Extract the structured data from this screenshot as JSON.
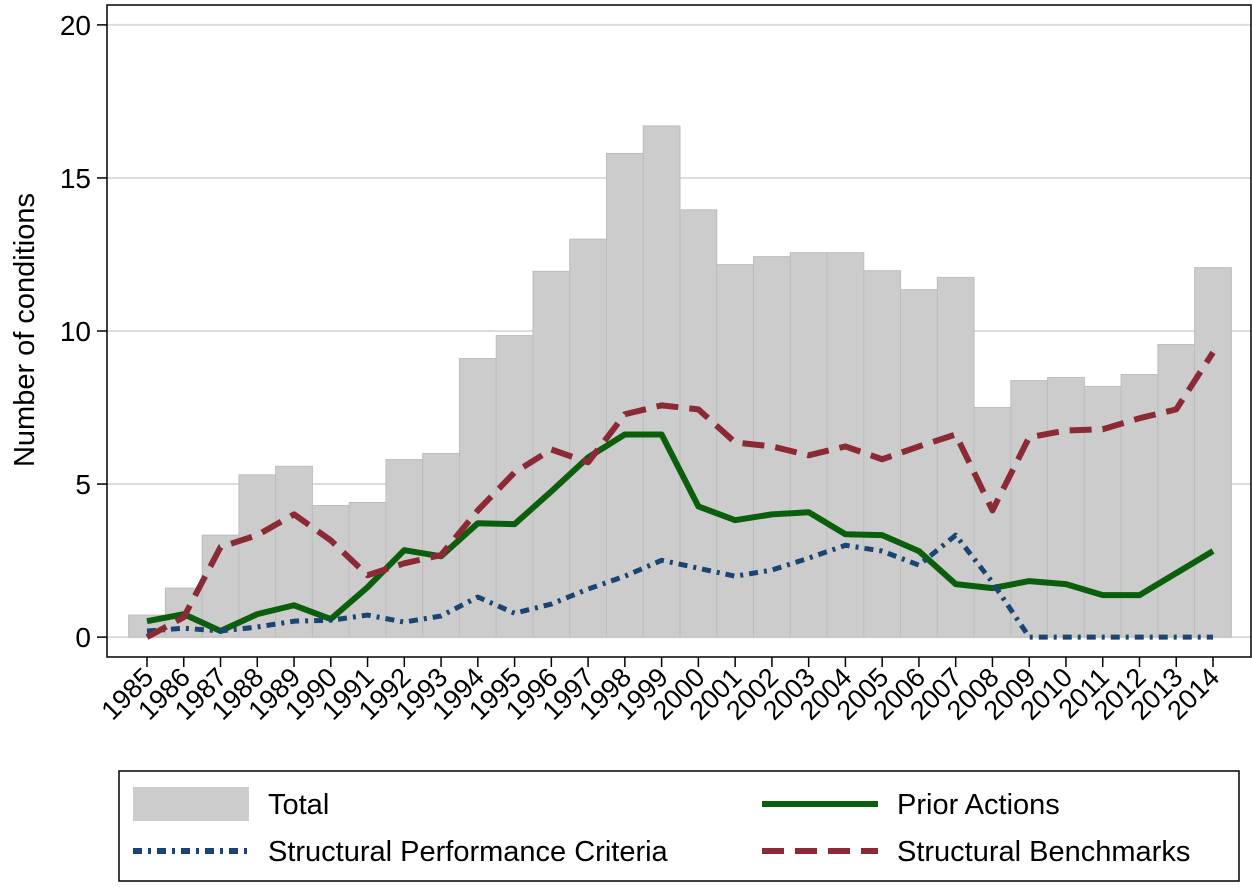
{
  "chart_data": {
    "type": "combo",
    "y_label": "Number of conditions",
    "categories": [
      "1985",
      "1986",
      "1987",
      "1988",
      "1989",
      "1990",
      "1991",
      "1992",
      "1993",
      "1994",
      "1995",
      "1996",
      "1997",
      "1998",
      "1999",
      "2000",
      "2001",
      "2002",
      "2003",
      "2004",
      "2005",
      "2006",
      "2007",
      "2008",
      "2009",
      "2010",
      "2011",
      "2012",
      "2013",
      "2014"
    ],
    "series": [
      {
        "name": "Total",
        "kind": "bar",
        "color": "#cccccc",
        "values": [
          0.72,
          1.6,
          3.33,
          5.3,
          5.58,
          4.3,
          4.4,
          5.8,
          6.0,
          9.1,
          9.85,
          11.95,
          13.0,
          15.8,
          16.7,
          13.96,
          12.17,
          12.43,
          12.56,
          12.56,
          11.97,
          11.35,
          11.75,
          7.5,
          8.38,
          8.48,
          8.19,
          8.58,
          9.56,
          12.07
        ]
      },
      {
        "name": "Prior Actions",
        "kind": "line",
        "linestyle": "solid",
        "color": "#0b5e0b",
        "values": [
          0.52,
          0.75,
          0.2,
          0.75,
          1.04,
          0.59,
          1.63,
          2.84,
          2.64,
          3.72,
          3.69,
          4.76,
          5.87,
          6.62,
          6.62,
          4.27,
          3.82,
          4.01,
          4.08,
          3.36,
          3.33,
          2.81,
          1.73,
          1.6,
          1.83,
          1.73,
          1.37,
          1.37,
          2.09,
          2.81
        ]
      },
      {
        "name": "Structural Performance Criteria",
        "kind": "line",
        "linestyle": "dashdot",
        "color": "#1a4473",
        "values": [
          0.2,
          0.29,
          0.2,
          0.33,
          0.52,
          0.55,
          0.72,
          0.49,
          0.69,
          1.31,
          0.78,
          1.08,
          1.57,
          1.99,
          2.51,
          2.25,
          1.99,
          2.19,
          2.58,
          3.0,
          2.81,
          2.35,
          3.33,
          1.79,
          0,
          0,
          0,
          0,
          0,
          0
        ]
      },
      {
        "name": "Structural Benchmarks",
        "kind": "line",
        "linestyle": "dash",
        "color": "#8b2a35",
        "values": [
          0,
          0.65,
          2.94,
          3.33,
          4.01,
          3.16,
          2.02,
          2.41,
          2.68,
          4.14,
          5.38,
          6.13,
          5.71,
          7.28,
          7.57,
          7.44,
          6.36,
          6.23,
          5.94,
          6.23,
          5.81,
          6.23,
          6.62,
          4.14,
          6.53,
          6.75,
          6.79,
          7.15,
          7.44,
          9.3
        ]
      }
    ],
    "ylim": [
      -0.65,
      20.65
    ],
    "yticks": [
      0,
      5,
      10,
      15,
      20
    ],
    "grid": true,
    "legend": "bottom"
  }
}
